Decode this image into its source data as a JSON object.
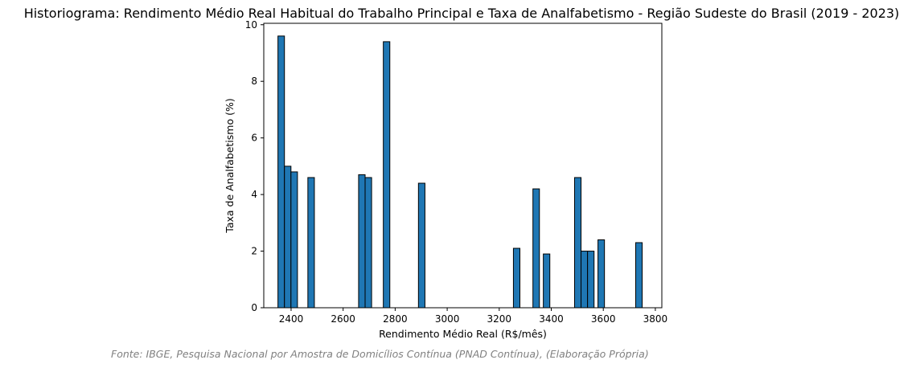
{
  "chart_data": {
    "type": "bar",
    "title": "Historiograma: Rendimento Médio Real Habitual do Trabalho Principal e Taxa de Analfabetismo - Região Sudeste do Brasil (2019 - 2023)",
    "xlabel": "Rendimento Médio Real (R$/mês)",
    "ylabel": "Taxa de Analfabetismo (%)",
    "caption": "Fonte: IBGE, Pesquisa Nacional por Amostra de Domicílios Contínua (PNAD Contínua), (Elaboração Própria)",
    "xlim": [
      2295,
      3825
    ],
    "ylim": [
      0,
      10.05
    ],
    "x_ticks": [
      2400,
      2600,
      2800,
      3000,
      3200,
      3400,
      3600,
      3800
    ],
    "y_ticks": [
      0,
      2,
      4,
      6,
      8,
      10
    ],
    "x_tick_labels": [
      "2400",
      "2600",
      "2800",
      "3000",
      "3200",
      "3400",
      "3600",
      "3800"
    ],
    "y_tick_labels": [
      "0",
      "2",
      "4",
      "6",
      "8",
      "10"
    ],
    "bar_width": 25,
    "grid": false,
    "bar_color": "#1f77b4",
    "edge_color": "#000000",
    "points": [
      {
        "x": 2362,
        "y": 9.6
      },
      {
        "x": 2387,
        "y": 5.0
      },
      {
        "x": 2412,
        "y": 4.8
      },
      {
        "x": 2477,
        "y": 4.6
      },
      {
        "x": 2672,
        "y": 4.7
      },
      {
        "x": 2697,
        "y": 4.6
      },
      {
        "x": 2767,
        "y": 9.4
      },
      {
        "x": 2902,
        "y": 4.4
      },
      {
        "x": 3267,
        "y": 2.1
      },
      {
        "x": 3342,
        "y": 4.2
      },
      {
        "x": 3382,
        "y": 1.9
      },
      {
        "x": 3502,
        "y": 4.6
      },
      {
        "x": 3527,
        "y": 2.0
      },
      {
        "x": 3552,
        "y": 2.0
      },
      {
        "x": 3592,
        "y": 2.4
      },
      {
        "x": 3737,
        "y": 2.3
      }
    ]
  }
}
